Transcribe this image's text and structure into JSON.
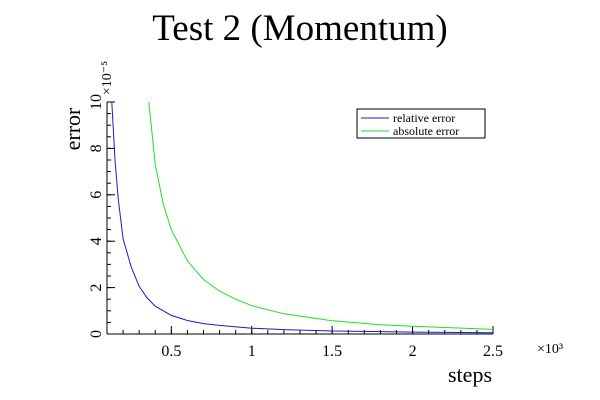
{
  "chart_data": {
    "type": "line",
    "title": "Test 2 (Momentum)",
    "xlabel": "steps",
    "ylabel": "error",
    "x_multiplier": "×10³",
    "y_multiplier": "×10⁻⁵",
    "xlim": [
      0.1,
      2.5
    ],
    "ylim": [
      0,
      10
    ],
    "x_ticks": [
      0.5,
      1,
      1.5,
      2,
      2.5
    ],
    "x_tick_labels": [
      "0.5",
      "1",
      "1.5",
      "2",
      "2.5"
    ],
    "y_ticks": [
      0,
      2,
      4,
      6,
      8,
      10
    ],
    "y_tick_labels": [
      "0",
      "2",
      "4",
      "6",
      "8",
      "10"
    ],
    "grid": false,
    "legend_position": "top-right",
    "series": [
      {
        "name": "relative error",
        "color": "#1a1acc",
        "x": [
          0.13,
          0.15,
          0.17,
          0.2,
          0.25,
          0.3,
          0.35,
          0.4,
          0.5,
          0.6,
          0.7,
          0.8,
          1.0,
          1.2,
          1.5,
          2.0,
          2.5
        ],
        "y": [
          10.0,
          7.5,
          5.8,
          4.1,
          2.9,
          2.05,
          1.55,
          1.2,
          0.8,
          0.58,
          0.45,
          0.37,
          0.25,
          0.19,
          0.13,
          0.08,
          0.05
        ]
      },
      {
        "name": "absolute error",
        "color": "#22dd22",
        "x": [
          0.36,
          0.4,
          0.45,
          0.5,
          0.6,
          0.7,
          0.8,
          0.9,
          1.0,
          1.2,
          1.5,
          1.8,
          2.0,
          2.5
        ],
        "y": [
          10.0,
          7.3,
          5.6,
          4.5,
          3.15,
          2.35,
          1.85,
          1.5,
          1.22,
          0.87,
          0.57,
          0.4,
          0.33,
          0.2
        ]
      }
    ]
  }
}
